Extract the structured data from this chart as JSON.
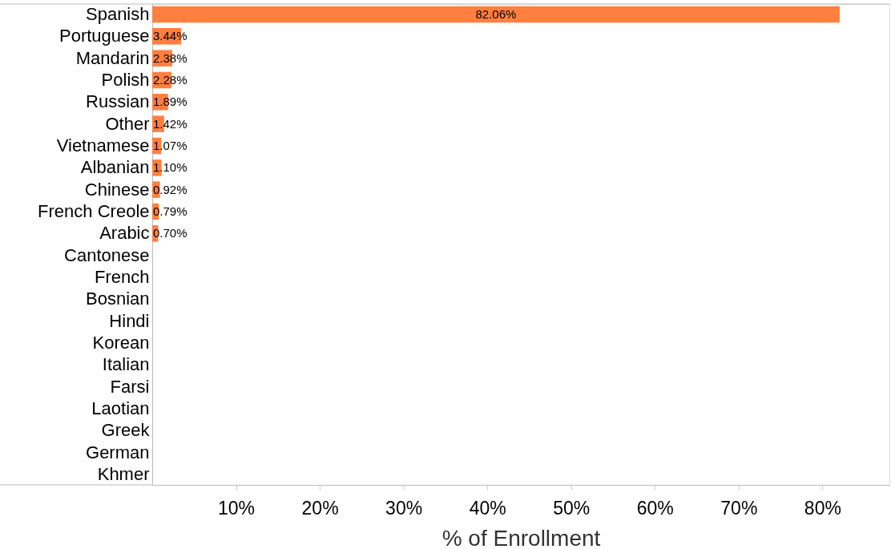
{
  "chart_data": {
    "type": "bar",
    "orientation": "horizontal",
    "xlabel": "% of Enrollment",
    "categories": [
      "Spanish",
      "Portuguese",
      "Mandarin",
      "Polish",
      "Russian",
      "Other",
      "Vietnamese",
      "Albanian",
      "Chinese",
      "French Creole",
      "Arabic",
      "Cantonese",
      "French",
      "Bosnian",
      "Hindi",
      "Korean",
      "Italian",
      "Farsi",
      "Laotian",
      "Greek",
      "German",
      "Khmer"
    ],
    "values": [
      82.06,
      3.44,
      2.38,
      2.28,
      1.89,
      1.42,
      1.07,
      1.1,
      0.92,
      0.79,
      0.7,
      null,
      null,
      null,
      null,
      null,
      null,
      null,
      null,
      null,
      null,
      null
    ],
    "value_labels": [
      "82.06%",
      "3.44%",
      "2.38%",
      "2.28%",
      "1.89%",
      "1.42%",
      "1.07%",
      "1.10%",
      "0.92%",
      "0.79%",
      "0.70%",
      null,
      null,
      null,
      null,
      null,
      null,
      null,
      null,
      null,
      null,
      null
    ],
    "color": "#ff7f3f",
    "xlim": [
      0,
      88
    ],
    "xticks": [
      {
        "value": 10,
        "label": "10%"
      },
      {
        "value": 20,
        "label": "20%"
      },
      {
        "value": 30,
        "label": "30%"
      },
      {
        "value": 40,
        "label": "40%"
      },
      {
        "value": 50,
        "label": "50%"
      },
      {
        "value": 60,
        "label": "60%"
      },
      {
        "value": 70,
        "label": "70%"
      },
      {
        "value": 80,
        "label": "80%"
      }
    ],
    "grid": false
  }
}
